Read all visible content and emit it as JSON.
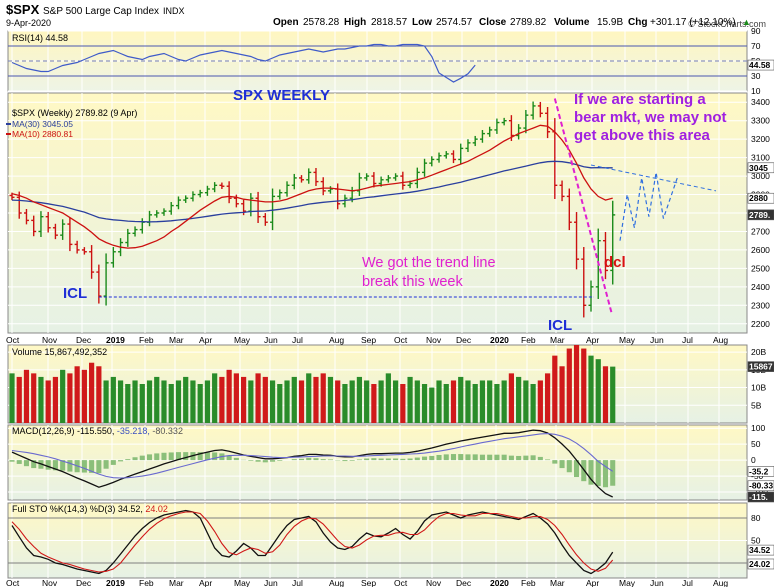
{
  "header": {
    "symbol": "$SPX",
    "name": "S&P 500 Large Cap Index",
    "exchange": "INDX",
    "date": "9-Apr-2020",
    "open_label": "Open",
    "open": "2578.28",
    "high_label": "High",
    "high": "2818.57",
    "low_label": "Low",
    "low": "2574.57",
    "close_label": "Close",
    "close": "2789.82",
    "volume_label": "Volume",
    "volume": "15.9B",
    "chg_label": "Chg",
    "chg": "+301.17 (+12.10%)",
    "up_arrow": "▲",
    "watermark": "© StockCharts.com"
  },
  "x_axis_labels": [
    "Oct",
    "Nov",
    "Dec",
    "2019",
    "Feb",
    "Mar",
    "Apr",
    "May",
    "Jun",
    "Jul",
    "Aug",
    "Sep",
    "Oct",
    "Nov",
    "Dec",
    "2020",
    "Feb",
    "Mar",
    "Apr",
    "May",
    "Jun",
    "Jul",
    "Aug"
  ],
  "colors": {
    "up": "#1a8a1a",
    "down": "#cc1111",
    "ma30": "#2a3f9e",
    "ma10": "#cc1111",
    "annot_blue": "#1f2fd6",
    "annot_magenta": "#e020d0",
    "annot_purple": "#a020e0",
    "annot_red": "#d81010",
    "projection": "#2f6fe0",
    "bg_top": "#fff8c4",
    "bg_bottom": "#e9f2e6",
    "grid": "#ffffff",
    "frame": "#888888"
  },
  "chart_data": [
    {
      "panel": "rsi",
      "type": "line",
      "label": "RSI(14) 44.58",
      "y_ticks": [
        "90",
        "70",
        "50",
        "30",
        "10"
      ],
      "current_value_tag": "44.58",
      "ylim": [
        10,
        90
      ],
      "reference_lines": [
        70,
        30
      ],
      "values": [
        48,
        44,
        40,
        38,
        36,
        36,
        40,
        44,
        46,
        48,
        52,
        56,
        60,
        62,
        64,
        60,
        56,
        54,
        52,
        56,
        58,
        60,
        56,
        52,
        50,
        54,
        58,
        60,
        62,
        64,
        62,
        60,
        58,
        56,
        52,
        50,
        54,
        58,
        60,
        62,
        64,
        66,
        64,
        62,
        64,
        66,
        66,
        68,
        70,
        70,
        72,
        72,
        70,
        70,
        72,
        72,
        72,
        70,
        56,
        34,
        28,
        22,
        27,
        33,
        44.58
      ]
    },
    {
      "panel": "price",
      "type": "ohlc",
      "label": "$SPX (Weekly) 2789.82 (9 Apr)",
      "y_ticks": [
        "3400",
        "3300",
        "3200",
        "3100",
        "3000",
        "2900",
        "2800",
        "2700",
        "2600",
        "2500",
        "2400",
        "2300",
        "2200"
      ],
      "ylim": [
        2150,
        3450
      ],
      "price_tags": [
        {
          "label": "3045",
          "value": 3045
        },
        {
          "label": "2880",
          "value": 2880
        },
        {
          "label": "2789.",
          "value": 2790
        }
      ],
      "ma30_label": "MA(30) 3045.05",
      "ma10_label": "MA(10) 2880.81",
      "closes": [
        2885,
        2800,
        2760,
        2700,
        2780,
        2720,
        2680,
        2740,
        2630,
        2600,
        2590,
        2480,
        2350,
        2530,
        2590,
        2640,
        2690,
        2710,
        2750,
        2790,
        2800,
        2810,
        2840,
        2870,
        2880,
        2900,
        2910,
        2930,
        2950,
        2945,
        2880,
        2850,
        2810,
        2880,
        2780,
        2750,
        2890,
        2910,
        2950,
        2990,
        2980,
        3020,
        2970,
        2920,
        2930,
        2850,
        2880,
        2920,
        2990,
        3000,
        2960,
        2980,
        2990,
        3000,
        2950,
        2960,
        3020,
        3070,
        3090,
        3110,
        3120,
        3090,
        3150,
        3180,
        3200,
        3230,
        3250,
        3290,
        3300,
        3220,
        3260,
        3330,
        3380,
        3340,
        3240,
        2950,
        2890,
        2750,
        2550,
        2300,
        2400,
        2650,
        2489,
        2789.82
      ],
      "ma30": [
        2870,
        2868,
        2865,
        2860,
        2856,
        2850,
        2843,
        2836,
        2826,
        2815,
        2805,
        2790,
        2775,
        2768,
        2763,
        2760,
        2756,
        2754,
        2753,
        2752,
        2753,
        2755,
        2758,
        2762,
        2766,
        2771,
        2776,
        2782,
        2788,
        2794,
        2798,
        2801,
        2803,
        2808,
        2810,
        2811,
        2815,
        2820,
        2826,
        2833,
        2840,
        2848,
        2853,
        2858,
        2862,
        2865,
        2868,
        2872,
        2878,
        2884,
        2888,
        2893,
        2898,
        2903,
        2907,
        2912,
        2918,
        2925,
        2933,
        2941,
        2950,
        2958,
        2967,
        2977,
        2987,
        2997,
        3007,
        3017,
        3028,
        3036,
        3045,
        3054,
        3063,
        3072,
        3078,
        3080,
        3078,
        3072,
        3062,
        3050,
        3045,
        3046,
        3045,
        3045.05
      ],
      "ma10": [
        2905,
        2895,
        2880,
        2860,
        2845,
        2830,
        2815,
        2800,
        2775,
        2750,
        2725,
        2695,
        2660,
        2640,
        2625,
        2615,
        2610,
        2612,
        2620,
        2635,
        2650,
        2670,
        2700,
        2725,
        2755,
        2785,
        2815,
        2840,
        2865,
        2885,
        2890,
        2885,
        2875,
        2870,
        2865,
        2860,
        2860,
        2865,
        2875,
        2890,
        2905,
        2920,
        2930,
        2935,
        2935,
        2930,
        2925,
        2920,
        2925,
        2935,
        2945,
        2950,
        2955,
        2960,
        2965,
        2970,
        2980,
        2990,
        3005,
        3020,
        3035,
        3050,
        3065,
        3080,
        3100,
        3120,
        3140,
        3165,
        3190,
        3210,
        3230,
        3245,
        3260,
        3275,
        3270,
        3240,
        3195,
        3140,
        3070,
        2990,
        2930,
        2890,
        2870,
        2880.81
      ],
      "annotations": {
        "title": "SPX WEEKLY",
        "bear": [
          "If we are starting a",
          "bear mkt, we may not",
          "get above this area"
        ],
        "trendline": [
          "We got the trend line",
          "break this week"
        ],
        "icl_left": "ICL",
        "icl_right": "ICL",
        "dcl": "dcl"
      },
      "projection": [
        [
          84,
          2650
        ],
        [
          85,
          2900
        ],
        [
          86,
          2720
        ],
        [
          87,
          2990
        ],
        [
          88,
          2780
        ],
        [
          89,
          3020
        ],
        [
          90,
          2770
        ],
        [
          92,
          3000
        ]
      ]
    },
    {
      "panel": "volume",
      "type": "bar",
      "label": "Volume 15,867,492,352",
      "unit": "B",
      "y_ticks": [
        "20B",
        "15B",
        "10B",
        "5B"
      ],
      "ylim": [
        0,
        22
      ],
      "current_value_tag": "15867",
      "values": [
        14,
        13,
        15,
        14,
        13,
        12,
        13,
        15,
        14,
        16,
        15,
        17,
        16,
        12,
        13,
        12,
        11,
        12,
        11,
        12,
        13,
        12,
        11,
        12,
        13,
        12,
        11,
        12,
        14,
        13,
        15,
        14,
        13,
        12,
        14,
        13,
        12,
        11,
        12,
        13,
        12,
        14,
        13,
        14,
        13,
        12,
        11,
        12,
        13,
        12,
        11,
        12,
        14,
        12,
        11,
        13,
        12,
        11,
        10,
        12,
        11,
        12,
        13,
        12,
        11,
        12,
        12,
        11,
        12,
        14,
        13,
        12,
        11,
        12,
        14,
        19,
        16,
        21,
        22,
        21,
        19,
        18,
        16,
        15.9
      ],
      "up_weeks": [
        1,
        0,
        0,
        0,
        1,
        0,
        0,
        1,
        0,
        0,
        0,
        0,
        0,
        1,
        1,
        1,
        1,
        1,
        1,
        1,
        1,
        1,
        1,
        1,
        1,
        1,
        1,
        1,
        1,
        0,
        0,
        0,
        0,
        1,
        0,
        0,
        1,
        1,
        1,
        1,
        0,
        1,
        0,
        0,
        1,
        0,
        1,
        1,
        1,
        1,
        0,
        1,
        1,
        1,
        0,
        1,
        1,
        1,
        1,
        1,
        1,
        0,
        1,
        1,
        1,
        1,
        1,
        1,
        1,
        0,
        1,
        1,
        1,
        0,
        0,
        0,
        0,
        0,
        0,
        0,
        1,
        1,
        0,
        1
      ]
    },
    {
      "panel": "macd",
      "type": "line",
      "label_prefix": "MACD(12,26,9)",
      "macd_value": "-115.550",
      "signal_value": "-35.218",
      "hist_value": "-80.332",
      "y_ticks": [
        "100",
        "50",
        "0",
        "-50",
        "-100"
      ],
      "ylim": [
        -125,
        110
      ],
      "tags": [
        "-35.2",
        "-80.33",
        "-115."
      ],
      "macd": [
        25,
        15,
        5,
        -5,
        -12,
        -20,
        -28,
        -36,
        -46,
        -56,
        -65,
        -75,
        -85,
        -78,
        -70,
        -60,
        -52,
        -44,
        -36,
        -28,
        -20,
        -12,
        -5,
        2,
        8,
        14,
        20,
        25,
        30,
        32,
        28,
        22,
        16,
        12,
        8,
        4,
        4,
        6,
        8,
        12,
        14,
        18,
        18,
        16,
        15,
        12,
        10,
        10,
        14,
        18,
        20,
        20,
        21,
        22,
        22,
        24,
        28,
        33,
        38,
        44,
        50,
        55,
        60,
        64,
        68,
        72,
        76,
        80,
        84,
        84,
        86,
        90,
        94,
        92,
        85,
        70,
        50,
        28,
        0,
        -30,
        -60,
        -85,
        -105,
        -115.55
      ],
      "signal": [
        30,
        27,
        24,
        20,
        15,
        10,
        4,
        -3,
        -10,
        -18,
        -26,
        -35,
        -44,
        -51,
        -55,
        -56,
        -55,
        -53,
        -50,
        -46,
        -41,
        -35,
        -29,
        -23,
        -17,
        -11,
        -5,
        1,
        6,
        11,
        14,
        15,
        15,
        14,
        13,
        11,
        9,
        8,
        8,
        9,
        10,
        11,
        12,
        13,
        13,
        13,
        13,
        12,
        12,
        13,
        14,
        15,
        16,
        17,
        18,
        19,
        20,
        22,
        25,
        28,
        32,
        36,
        41,
        46,
        50,
        55,
        59,
        63,
        67,
        70,
        73,
        76,
        79,
        82,
        83,
        81,
        75,
        66,
        53,
        36,
        17,
        -4,
        -20,
        -35.218
      ]
    },
    {
      "panel": "stochastic",
      "type": "line",
      "label_prefix": "Full STO %K(14,3) %D(3)",
      "k_value": "34.52",
      "d_value": "24.02",
      "y_ticks": [
        "80",
        "50",
        "20"
      ],
      "ylim": [
        0,
        100
      ],
      "tags": [
        "34.52",
        "24.02"
      ],
      "k": [
        70,
        55,
        40,
        30,
        28,
        25,
        20,
        18,
        15,
        12,
        10,
        8,
        6,
        10,
        20,
        32,
        44,
        56,
        66,
        74,
        80,
        84,
        86,
        88,
        90,
        88,
        80,
        60,
        40,
        30,
        28,
        36,
        46,
        40,
        30,
        30,
        44,
        58,
        70,
        78,
        80,
        82,
        75,
        60,
        48,
        40,
        38,
        42,
        52,
        60,
        56,
        55,
        60,
        66,
        58,
        52,
        62,
        76,
        84,
        86,
        88,
        84,
        80,
        84,
        86,
        88,
        86,
        84,
        82,
        80,
        78,
        82,
        86,
        80,
        72,
        60,
        44,
        30,
        20,
        10,
        6,
        12,
        20,
        34.52
      ],
      "d": [
        75,
        65,
        52,
        42,
        33,
        28,
        24,
        20,
        18,
        15,
        12,
        10,
        8,
        9,
        12,
        20,
        32,
        44,
        55,
        65,
        73,
        79,
        83,
        86,
        88,
        88,
        86,
        76,
        62,
        46,
        34,
        31,
        36,
        40,
        38,
        33,
        35,
        44,
        58,
        69,
        76,
        80,
        79,
        72,
        61,
        50,
        42,
        40,
        44,
        51,
        56,
        57,
        57,
        60,
        61,
        58,
        58,
        64,
        74,
        82,
        86,
        86,
        84,
        83,
        83,
        86,
        86,
        86,
        84,
        82,
        80,
        80,
        82,
        82,
        78,
        70,
        58,
        44,
        31,
        20,
        12,
        9,
        13,
        24.02
      ]
    }
  ]
}
